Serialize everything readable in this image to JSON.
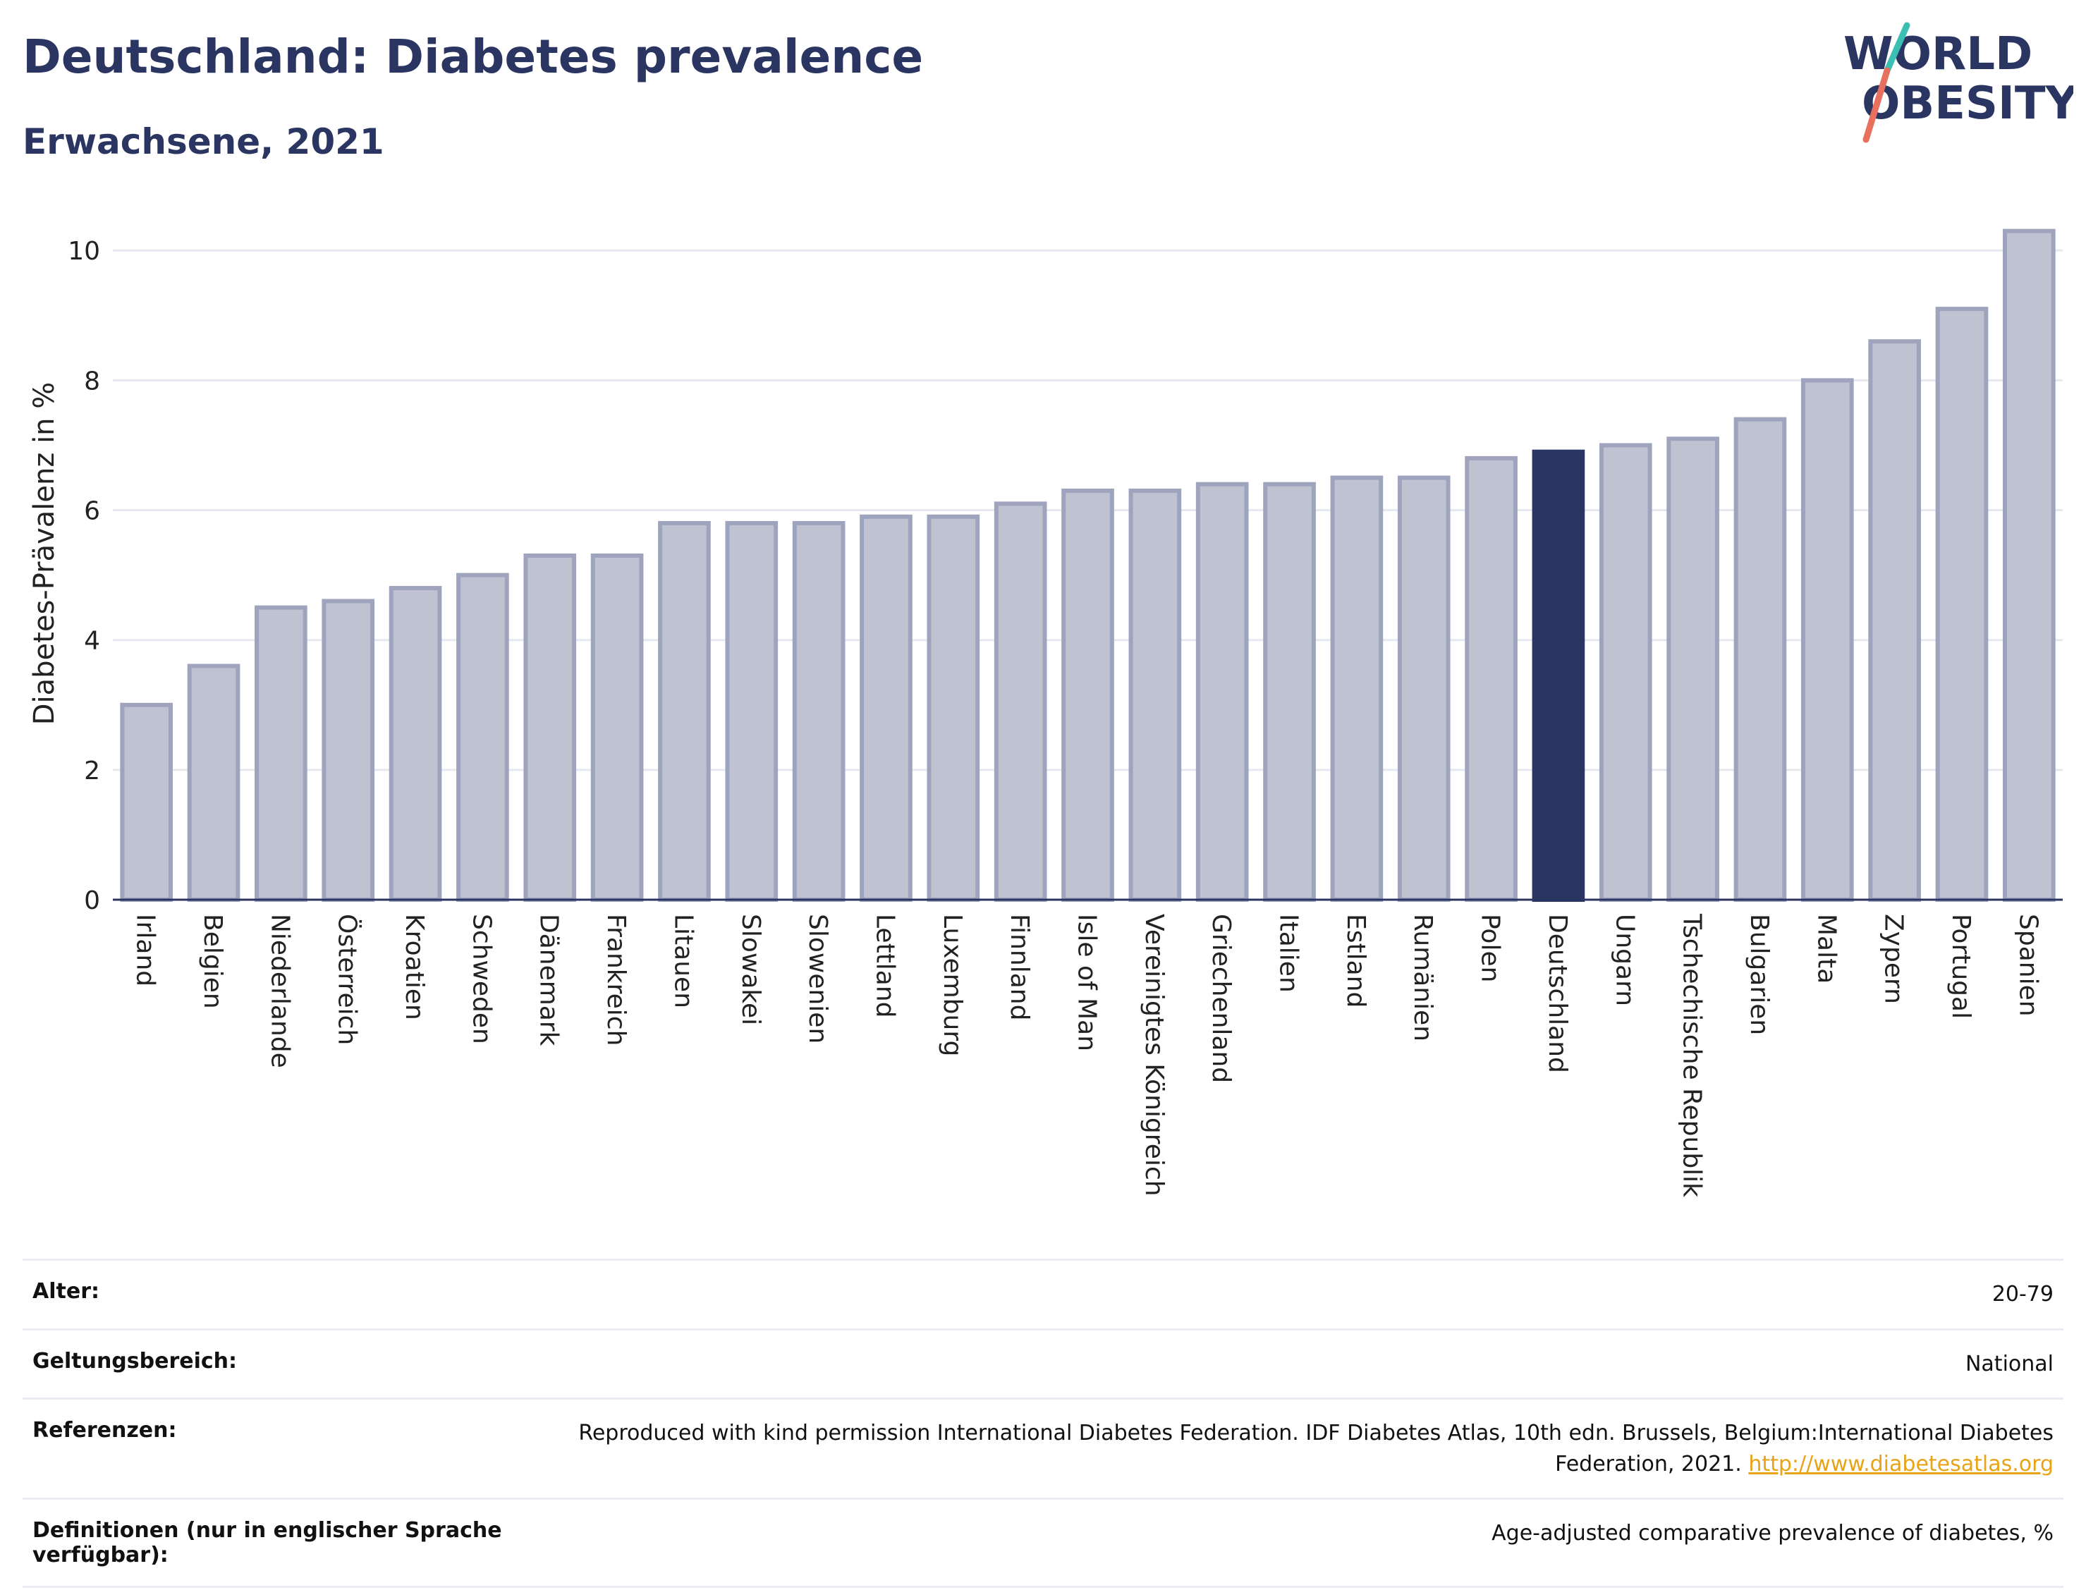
{
  "header": {
    "title": "Deutschland: Diabetes prevalence",
    "subtitle": "Erwachsene, 2021"
  },
  "logo": {
    "line1": "WORLD",
    "line2": "OBESITY",
    "colors": {
      "text": "#2b3562",
      "slash_top": "#3bbfb3",
      "slash_bottom": "#e8705e"
    }
  },
  "chart_data": {
    "type": "bar",
    "title": "",
    "xlabel": "",
    "ylabel": "Diabetes-Prävalenz in %",
    "ylim": [
      0,
      10.6
    ],
    "yticks": [
      0,
      2,
      4,
      6,
      8,
      10
    ],
    "grid": true,
    "highlight": "Deutschland",
    "colors": {
      "bar": "#bfc2d0",
      "bar_border": "#9ea4bd",
      "highlight": "#2b3562"
    },
    "categories": [
      "Irland",
      "Belgien",
      "Niederlande",
      "Österreich",
      "Kroatien",
      "Schweden",
      "Dänemark",
      "Frankreich",
      "Litauen",
      "Slowakei",
      "Slowenien",
      "Lettland",
      "Luxemburg",
      "Finnland",
      "Isle of Man",
      "Vereinigtes Königreich",
      "Griechenland",
      "Italien",
      "Estland",
      "Rumänien",
      "Polen",
      "Deutschland",
      "Ungarn",
      "Tschechische Republik",
      "Bulgarien",
      "Malta",
      "Zypern",
      "Portugal",
      "Spanien"
    ],
    "values": [
      3.0,
      3.6,
      4.5,
      4.6,
      4.8,
      5.0,
      5.3,
      5.3,
      5.8,
      5.8,
      5.8,
      5.9,
      5.9,
      6.1,
      6.3,
      6.3,
      6.4,
      6.4,
      6.5,
      6.5,
      6.8,
      6.9,
      7.0,
      7.1,
      7.4,
      8.0,
      8.6,
      9.1,
      10.3
    ]
  },
  "meta": {
    "rows": [
      {
        "key": "Alter:",
        "value": "20-79"
      },
      {
        "key": "Geltungsbereich:",
        "value": "National"
      },
      {
        "key": "Referenzen:",
        "value": "Reproduced with kind permission International Diabetes Federation.  IDF Diabetes Atlas, 10th edn. Brussels, Belgium:International Diabetes Federation, 2021.",
        "link": "http://www.diabetesatlas.org"
      },
      {
        "key": "Definitionen (nur in englischer Sprache verfügbar):",
        "value": "Age-adjusted comparative prevalence of diabetes, %"
      }
    ]
  }
}
